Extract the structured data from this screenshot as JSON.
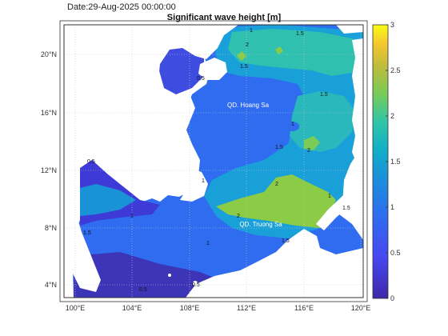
{
  "header": {
    "date": "Date:29-Aug-2025 00:00:00",
    "title": "Significant wave height [m]"
  },
  "map": {
    "lat_ticks": [
      "20°N",
      "16°N",
      "12°N",
      "8°N",
      "4°N"
    ],
    "lon_ticks": [
      "100°E",
      "104°E",
      "108°E",
      "112°E",
      "116°E",
      "120°E"
    ],
    "places": {
      "hoang_sa": "QD. Hoang Sa",
      "truong_sa": "QD. Truong Sa"
    },
    "contour_labels": [
      "0.5",
      "1",
      "1.5",
      "2",
      "1.5",
      "1",
      "2",
      "1.5",
      "1.5",
      "2",
      "1",
      "1",
      "1.5",
      "0.5",
      "1.5",
      "1",
      "0.5",
      "1.5",
      "0.5",
      "2",
      "1"
    ]
  },
  "colorbar": {
    "ticks": [
      "3",
      "2.5",
      "2",
      "1.5",
      "1",
      "0.5",
      "0"
    ],
    "min": 0,
    "max": 3,
    "colormap": "parula"
  },
  "colors": {
    "land": "#ffffff",
    "low": "#3e26a8",
    "mid_low": "#2f6cf0",
    "mid": "#1aa8d8",
    "mid_high": "#34c5a5",
    "high": "#8ccb46",
    "top": "#f9fb15"
  }
}
